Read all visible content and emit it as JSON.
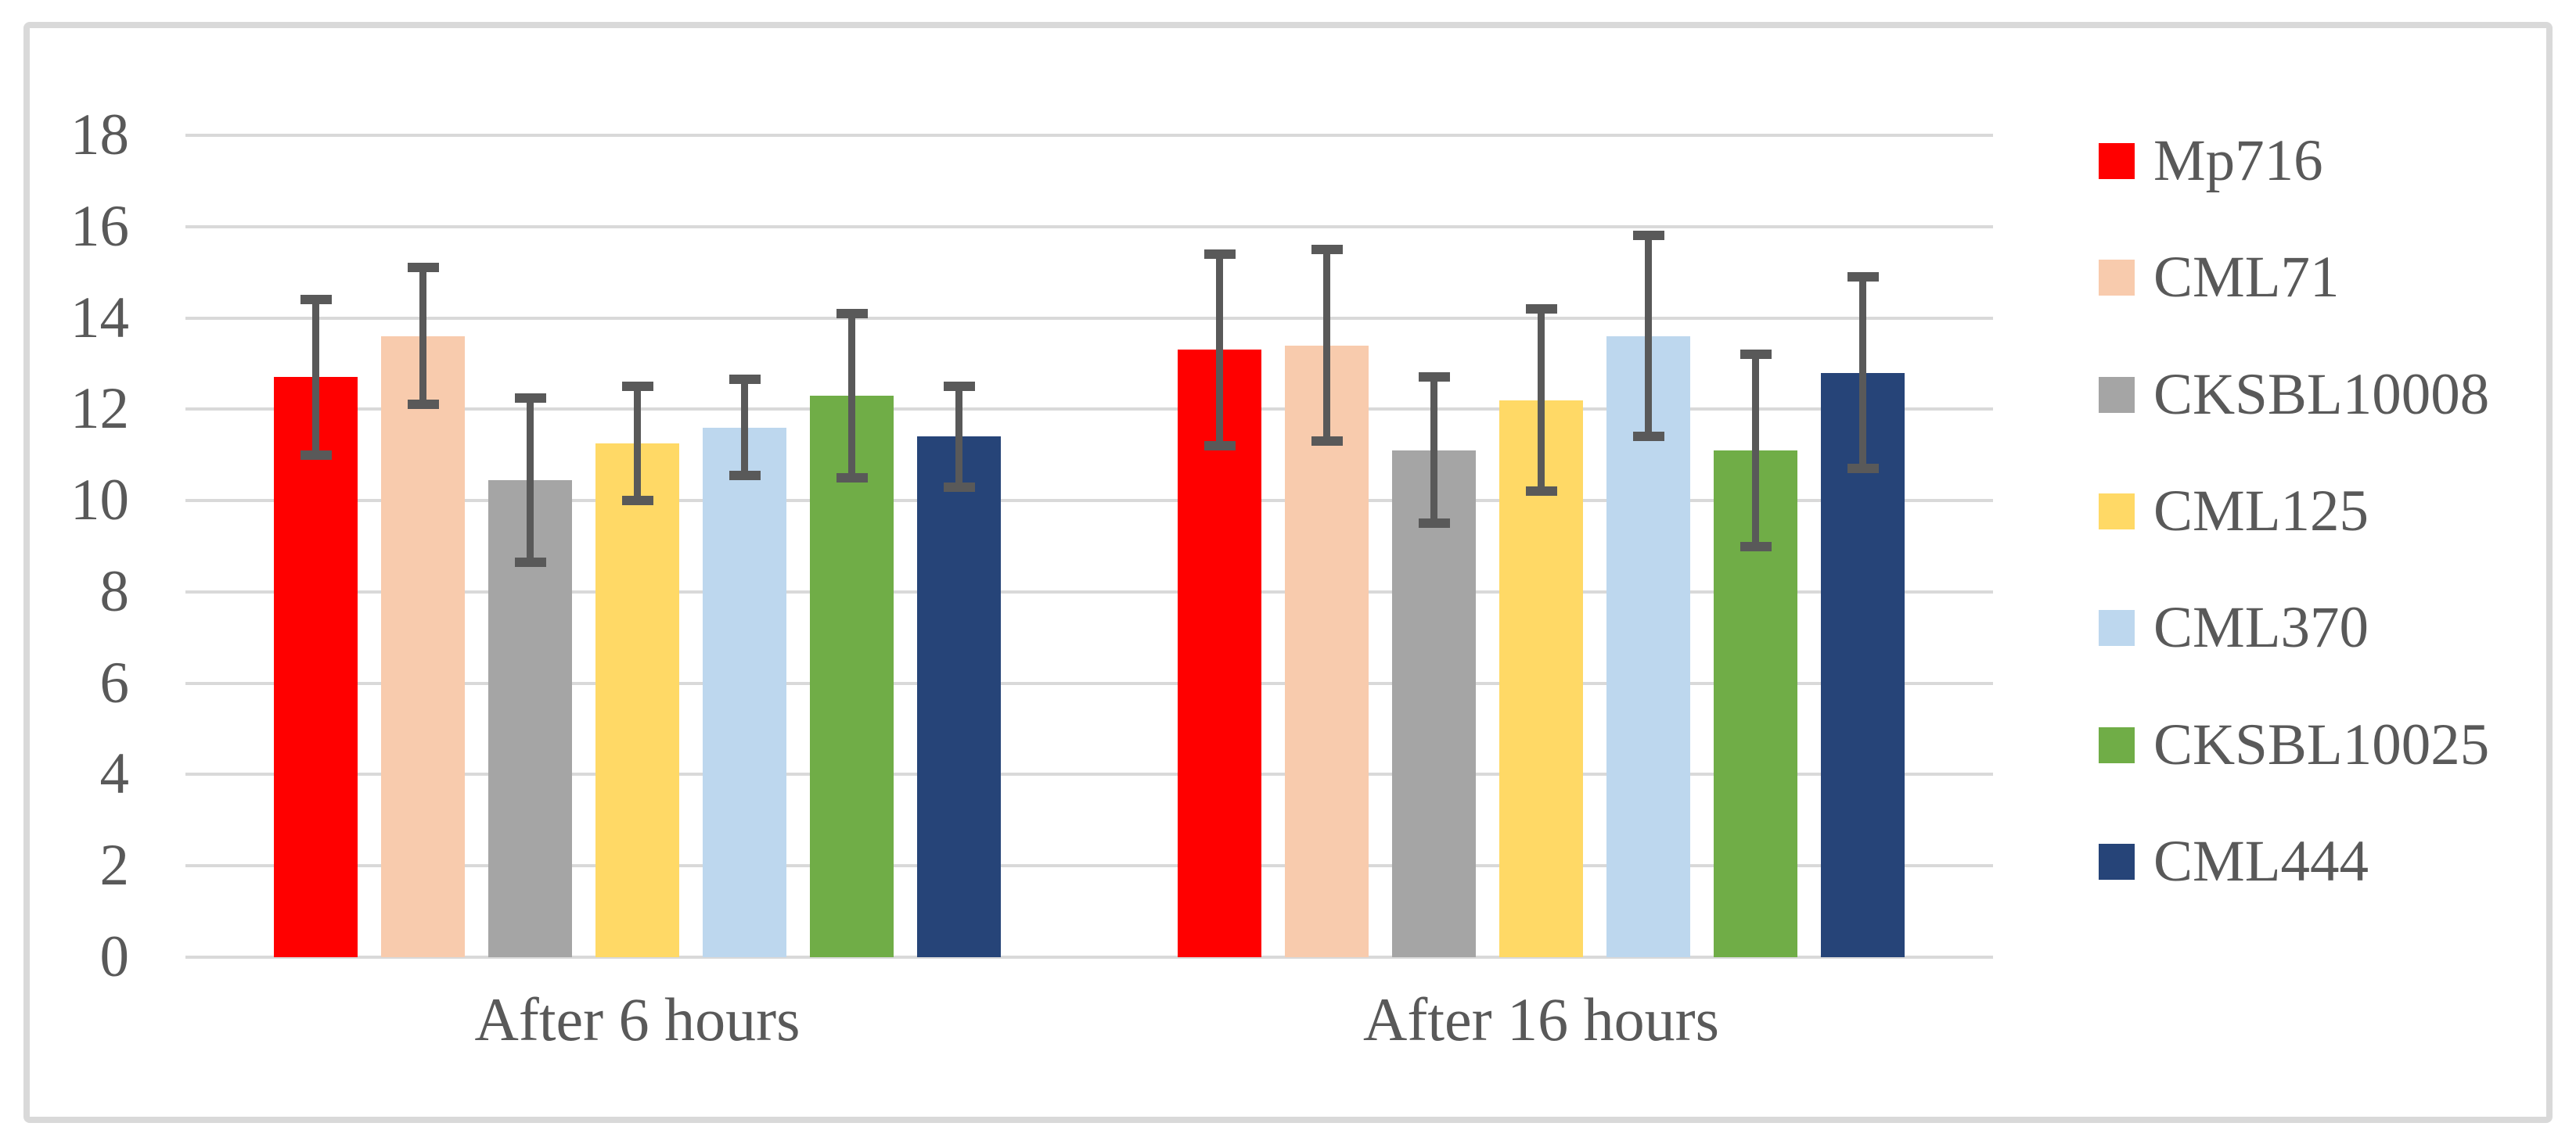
{
  "chart_data": {
    "type": "bar",
    "title": "",
    "xlabel": "",
    "ylabel": "",
    "categories": [
      "After 6 hours",
      "After 16 hours"
    ],
    "series": [
      {
        "name": "Mp716",
        "color": "#FF0000",
        "values": [
          12.7,
          13.3
        ],
        "errors": [
          1.7,
          2.1
        ]
      },
      {
        "name": "CML71",
        "color": "#F8CBAD",
        "values": [
          13.6,
          13.4
        ],
        "errors": [
          1.5,
          2.1
        ]
      },
      {
        "name": "CKSBL10008",
        "color": "#A5A5A5",
        "values": [
          10.45,
          11.1
        ],
        "errors": [
          1.8,
          1.6
        ]
      },
      {
        "name": "CML125",
        "color": "#FFD966",
        "values": [
          11.25,
          12.2
        ],
        "errors": [
          1.25,
          2.0
        ]
      },
      {
        "name": "CML370",
        "color": "#BDD7EE",
        "values": [
          11.6,
          13.6
        ],
        "errors": [
          1.05,
          2.2
        ]
      },
      {
        "name": "CKSBL10025",
        "color": "#70AD47",
        "values": [
          12.3,
          11.1
        ],
        "errors": [
          1.8,
          2.1
        ]
      },
      {
        "name": "CML444",
        "color": "#264478",
        "values": [
          11.4,
          12.8
        ],
        "errors": [
          1.1,
          2.1
        ]
      }
    ],
    "ylim": [
      0,
      18
    ],
    "ytick_step": 2,
    "yticks": [
      "18",
      "16",
      "14",
      "12",
      "10",
      "8",
      "6",
      "4",
      "2",
      "0"
    ],
    "grid": true,
    "error_bars": true,
    "legend_position": "right",
    "styles": {
      "text_color": "#595959",
      "gridline_color": "#D9D9D9",
      "errorbar_color": "#595959",
      "frame_border_color": "#D9D9D9",
      "background": "#FFFFFF"
    }
  }
}
